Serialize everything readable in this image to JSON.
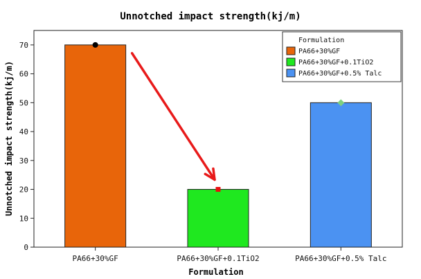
{
  "chart_data": {
    "type": "bar",
    "title": "Unnotched impact strength(kj/m)",
    "xlabel": "Formulation",
    "ylabel": "Unnotched impact strength(kj/m)",
    "ylim": [
      0,
      75
    ],
    "yticks": [
      "0",
      "10",
      "20",
      "30",
      "40",
      "50",
      "60",
      "70"
    ],
    "categories": [
      "PA66+30%GF",
      "PA66+30%GF+0.1TiO2",
      "PA66+30%GF+0.5% Talc"
    ],
    "values": [
      70,
      20,
      50
    ],
    "colors": [
      "#e8650a",
      "#1fe81f",
      "#4b92f2"
    ],
    "marker_colors": [
      "#000000",
      "#e81010",
      "#7fd07f"
    ],
    "marker_shapes": [
      "circle",
      "square",
      "diamond"
    ],
    "legend": {
      "title": "Formulation",
      "position": "top-right",
      "entries": [
        "PA66+30%GF",
        "PA66+30%GF+0.1TiO2",
        "PA66+30%GF+0.5% Talc"
      ]
    },
    "annotation": {
      "type": "arrow",
      "color": "#e81a1a",
      "from_category": "PA66+30%GF",
      "to_category": "PA66+30%GF+0.1TiO2"
    }
  }
}
